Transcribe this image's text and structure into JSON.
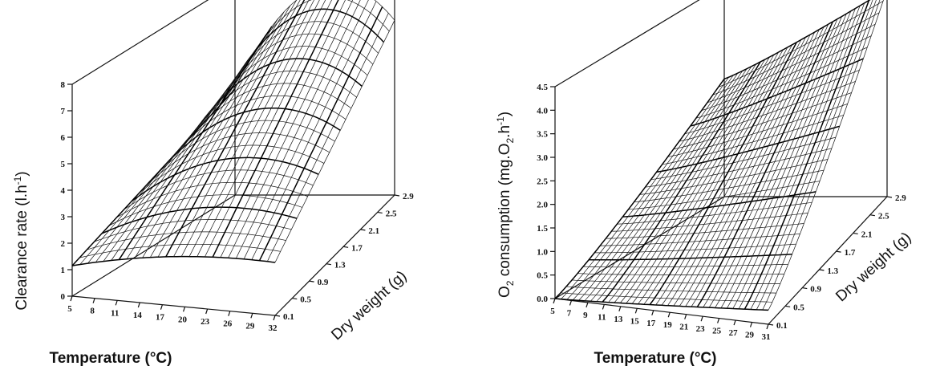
{
  "chart_data": [
    {
      "type": "surface",
      "zlabel": "Clearance rate (l.h",
      "zlabel_sup": "-1",
      "zlabel_tail": ")",
      "xlabel": "Temperature (°C)",
      "ylabel": "Dry weight (g)",
      "x_ticks": [
        "5",
        "8",
        "11",
        "14",
        "17",
        "20",
        "23",
        "26",
        "29",
        "32"
      ],
      "y_ticks": [
        "0.1",
        "0.5",
        "0.9",
        "1.3",
        "1.7",
        "2.1",
        "2.5",
        "2.9"
      ],
      "z_ticks": [
        "0",
        "1",
        "2",
        "3",
        "4",
        "5",
        "6",
        "7",
        "8"
      ],
      "xlim": [
        5,
        32
      ],
      "ylim": [
        0.1,
        2.9
      ],
      "zlim": [
        0,
        8
      ],
      "surface_shape": "parabolic in temperature (peak near 20 °C), increasing with dry weight",
      "corner_values": {
        "T5_W0.1": 0.9,
        "T32_W0.1": 2.0,
        "T5_W2.9": 4.0,
        "T20_W2.9": 7.9,
        "T32_W2.9": 6.6
      }
    },
    {
      "type": "surface",
      "zlabel_pre": "O",
      "zlabel_sub": "2",
      "zlabel_mid": " consumption (mg.O",
      "zlabel_sub2": "2",
      "zlabel_mid2": ".h",
      "zlabel_sup": "-1",
      "zlabel_tail": ")",
      "xlabel": "Temperature (°C)",
      "ylabel": "Dry weight (g)",
      "x_ticks": [
        "5",
        "7",
        "9",
        "11",
        "13",
        "15",
        "17",
        "19",
        "21",
        "23",
        "25",
        "27",
        "29",
        "31"
      ],
      "y_ticks": [
        "0.1",
        "0.5",
        "0.9",
        "1.3",
        "1.7",
        "2.1",
        "2.5",
        "2.9"
      ],
      "z_ticks": [
        "0.0",
        "0.5",
        "1.0",
        "1.5",
        "2.0",
        "2.5",
        "3.0",
        "3.5",
        "4.0",
        "4.5"
      ],
      "xlim": [
        5,
        31
      ],
      "ylim": [
        0.1,
        2.9
      ],
      "zlim": [
        0,
        4.5
      ],
      "surface_shape": "increasing with temperature and dry weight",
      "corner_values": {
        "T5_W0.1": 0.0,
        "T31_W0.1": 0.3,
        "T5_W2.9": 2.5,
        "T31_W2.9": 4.4
      }
    }
  ]
}
